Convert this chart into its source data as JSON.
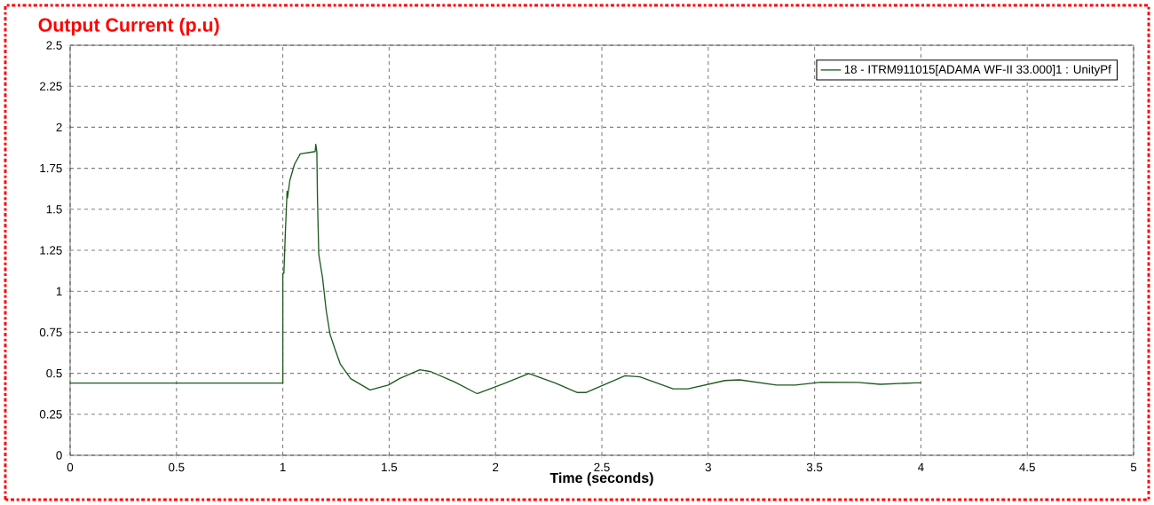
{
  "chart_data": {
    "type": "line",
    "title": "Output Current (p.u)",
    "xlabel": "Time (seconds)",
    "xlim": [
      0,
      5
    ],
    "ylim": [
      0,
      2.5
    ],
    "xticks": [
      0,
      0.5,
      1,
      1.5,
      2,
      2.5,
      3,
      3.5,
      4,
      4.5,
      5
    ],
    "yticks": [
      0,
      0.25,
      0.5,
      0.75,
      1,
      1.25,
      1.5,
      1.75,
      2,
      2.25,
      2.5
    ],
    "grid": true,
    "legend": "top right",
    "line_style": "solid",
    "marker": "none",
    "series": [
      {
        "name": "18 - ITRM911015[ADAMA WF-II 33.000]1 : UnityPf",
        "color": "#1e5a1e",
        "x": [
          0,
          1,
          1,
          1.005,
          1.012,
          1.02,
          1.022,
          1.033,
          1.055,
          1.082,
          1.152,
          1.155,
          1.16,
          1.163,
          1.169,
          1.187,
          1.204,
          1.222,
          1.245,
          1.27,
          1.319,
          1.41,
          1.496,
          1.548,
          1.644,
          1.696,
          1.81,
          1.913,
          2.035,
          2.157,
          2.279,
          2.383,
          2.427,
          2.609,
          2.679,
          2.835,
          2.905,
          3.079,
          3.148,
          3.322,
          3.409,
          3.531,
          3.705,
          3.809,
          3.974,
          4
        ],
        "values": [
          0.44,
          0.44,
          1.11,
          1.11,
          1.36,
          1.61,
          1.57,
          1.676,
          1.775,
          1.838,
          1.852,
          1.896,
          1.85,
          1.558,
          1.225,
          1.08,
          0.882,
          0.738,
          0.648,
          0.557,
          0.467,
          0.398,
          0.428,
          0.467,
          0.522,
          0.51,
          0.446,
          0.376,
          0.435,
          0.499,
          0.442,
          0.383,
          0.383,
          0.485,
          0.478,
          0.405,
          0.405,
          0.456,
          0.46,
          0.428,
          0.428,
          0.446,
          0.444,
          0.433,
          0.442,
          0.442
        ]
      }
    ]
  }
}
